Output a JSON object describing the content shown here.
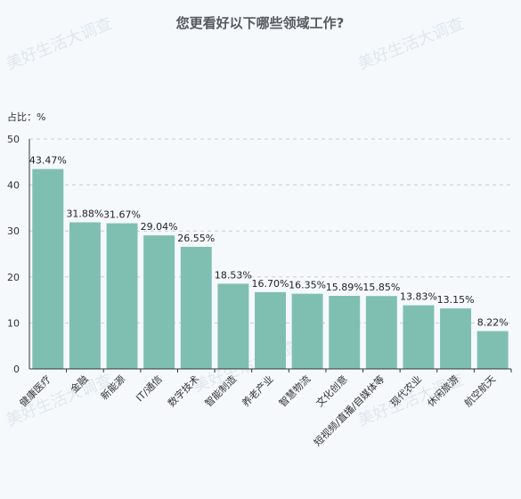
{
  "watermark": "美好生活大调查",
  "chart_data": {
    "type": "bar",
    "title": "您更看好以下哪些领域工作?",
    "unit_label": "占比：%",
    "ylim": [
      0,
      50
    ],
    "yticks": [
      0,
      10,
      20,
      30,
      40,
      50
    ],
    "grid": true,
    "bar_color": "#7fbfb2",
    "categories": [
      "健康医疗",
      "金融",
      "新能源",
      "IT/通信",
      "数字技术",
      "智能制造",
      "养老产业",
      "智慧物流",
      "文化创意",
      "短视频/直播/自媒体等",
      "现代农业",
      "休闲旅游",
      "航空航天"
    ],
    "values": [
      43.47,
      31.88,
      31.67,
      29.04,
      26.55,
      18.53,
      16.7,
      16.35,
      15.89,
      15.85,
      13.83,
      13.15,
      8.22
    ],
    "data_labels": [
      "43.47%",
      "31.88%",
      "31.67%",
      "29.04%",
      "26.55%",
      "18.53%",
      "16.70%",
      "16.35%",
      "15.89%",
      "15.85%",
      "13.83%",
      "13.15%",
      "8.22%"
    ]
  }
}
